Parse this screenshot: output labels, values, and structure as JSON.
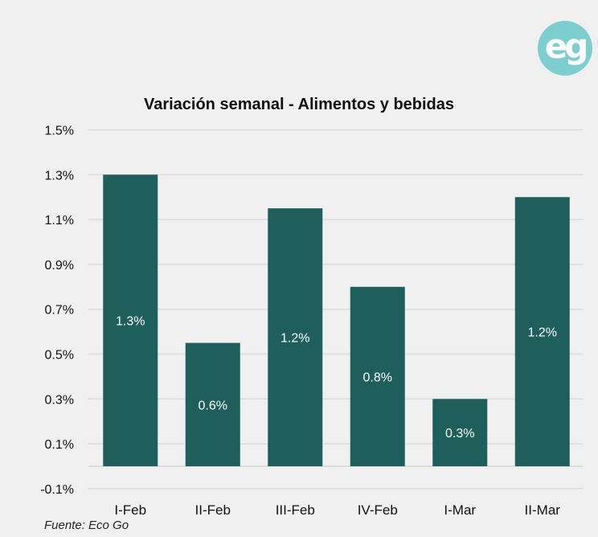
{
  "logo": {
    "text": "eg",
    "icon": "eco-go-logo",
    "color": "#7ccfce"
  },
  "source": "Fuente: Eco Go",
  "chart_data": {
    "type": "bar",
    "title": "Variación semanal - Alimentos y bebidas",
    "xlabel": "",
    "ylabel": "",
    "categories": [
      "I-Feb",
      "II-Feb",
      "III-Feb",
      "IV-Feb",
      "I-Mar",
      "II-Mar"
    ],
    "values": [
      1.3,
      0.55,
      1.15,
      0.8,
      0.3,
      1.2
    ],
    "data_labels": [
      "1.3%",
      "0.6%",
      "1.2%",
      "0.8%",
      "0.3%",
      "1.2%"
    ],
    "ylim": [
      -0.1,
      1.5
    ],
    "yticks": [
      -0.1,
      0.1,
      0.3,
      0.5,
      0.7,
      0.9,
      1.1,
      1.3,
      1.5
    ],
    "ytick_labels": [
      "-0.1%",
      "0.1%",
      "0.3%",
      "0.5%",
      "0.7%",
      "0.9%",
      "1.1%",
      "1.3%",
      "1.5%"
    ],
    "grid": true,
    "bar_color": "#1e5f5c",
    "label_color": "#ffffff",
    "legend": "none"
  }
}
